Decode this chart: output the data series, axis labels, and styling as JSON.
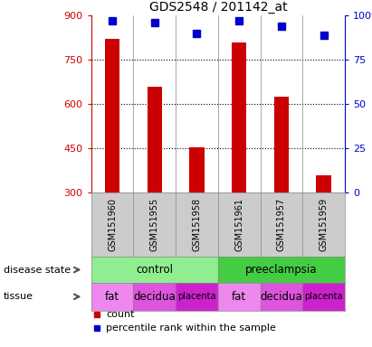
{
  "title": "GDS2548 / 201142_at",
  "samples": [
    "GSM151960",
    "GSM151955",
    "GSM151958",
    "GSM151961",
    "GSM151957",
    "GSM151959"
  ],
  "bar_values": [
    820,
    660,
    455,
    810,
    625,
    360
  ],
  "percentile_values": [
    97,
    96,
    90,
    97,
    94,
    89
  ],
  "bar_color": "#cc0000",
  "dot_color": "#0000cc",
  "ylim_left": [
    300,
    900
  ],
  "ylim_right": [
    0,
    100
  ],
  "yticks_left": [
    300,
    450,
    600,
    750,
    900
  ],
  "yticks_right": [
    0,
    25,
    50,
    75,
    100
  ],
  "disease_state": [
    {
      "label": "control",
      "span": [
        0,
        3
      ],
      "color": "#90ee90"
    },
    {
      "label": "preeclampsia",
      "span": [
        3,
        6
      ],
      "color": "#44cc44"
    }
  ],
  "tissue": [
    {
      "label": "fat",
      "span": [
        0,
        1
      ],
      "color": "#ee88ee"
    },
    {
      "label": "decidua",
      "span": [
        1,
        2
      ],
      "color": "#dd55dd"
    },
    {
      "label": "placenta",
      "span": [
        2,
        3
      ],
      "color": "#cc22cc"
    },
    {
      "label": "fat",
      "span": [
        3,
        4
      ],
      "color": "#ee88ee"
    },
    {
      "label": "decidua",
      "span": [
        4,
        5
      ],
      "color": "#dd55dd"
    },
    {
      "label": "placenta",
      "span": [
        5,
        6
      ],
      "color": "#cc22cc"
    }
  ],
  "ylabel_left_color": "#cc0000",
  "ylabel_right_color": "#0000cc",
  "background_color": "#ffffff",
  "sample_bg": "#cccccc",
  "grid_dotted_ticks": [
    450,
    600,
    750
  ],
  "legend_count_label": "count",
  "legend_pct_label": "percentile rank within the sample",
  "disease_state_label": "disease state",
  "tissue_label": "tissue"
}
